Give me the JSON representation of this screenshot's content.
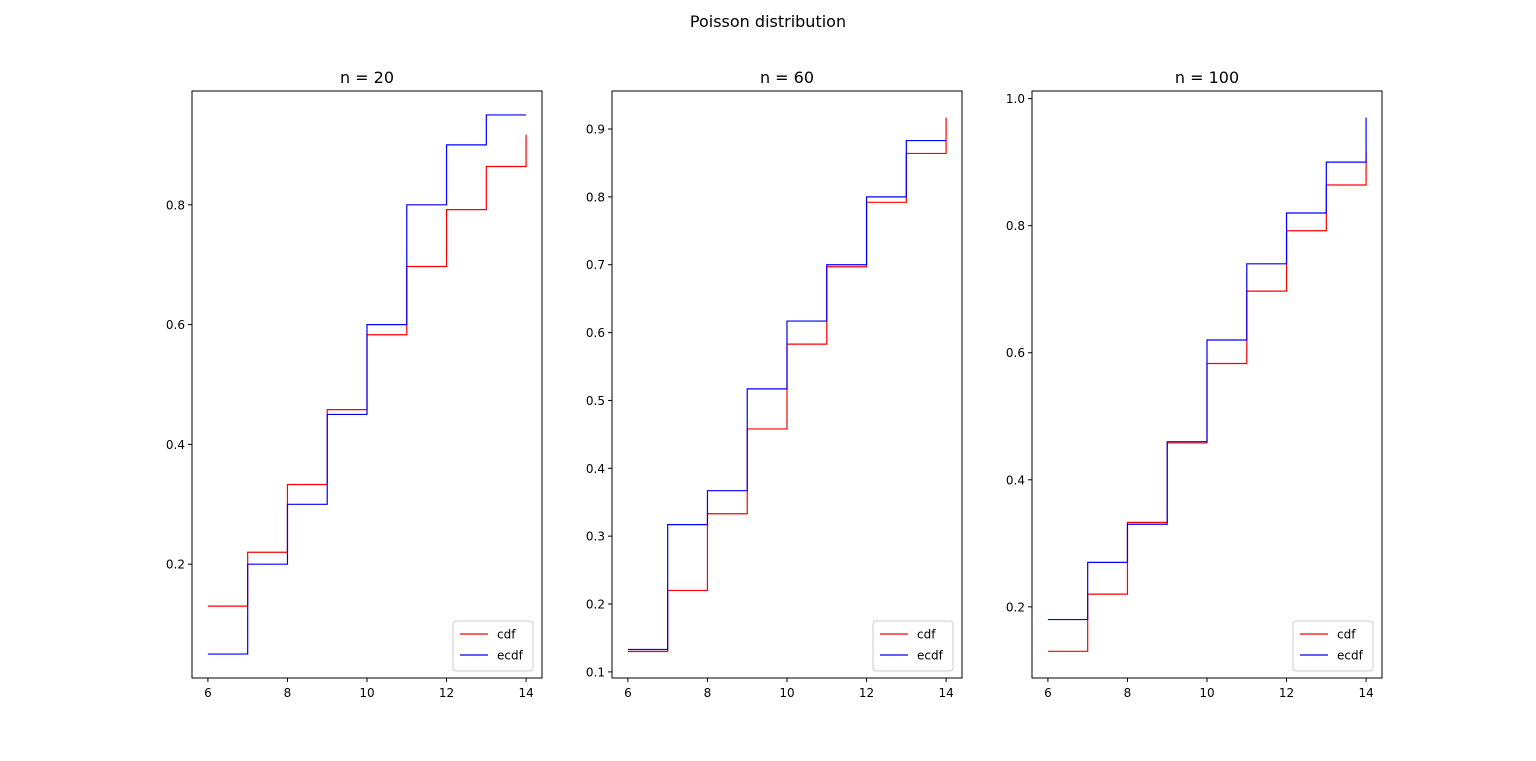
{
  "figure": {
    "title": "Poisson distribution",
    "colors": {
      "cdf": "#ff0000",
      "ecdf": "#0000ff",
      "axes": "#000000",
      "background": "#ffffff"
    }
  },
  "chart_data": [
    {
      "type": "line",
      "drawstyle": "steps-post",
      "title": "n = 20",
      "xlabel": "",
      "ylabel": "",
      "xlim": [
        5.6,
        14.4
      ],
      "ylim": [
        0.01,
        0.99
      ],
      "xticks": [
        6,
        8,
        10,
        12,
        14
      ],
      "yticks": [
        0.2,
        0.4,
        0.6,
        0.8
      ],
      "ytick_labels": [
        "0.2",
        "0.4",
        "0.6",
        "0.8"
      ],
      "grid": false,
      "legend": "lower-right",
      "x": [
        6,
        7,
        8,
        9,
        10,
        11,
        12,
        13,
        14
      ],
      "series": [
        {
          "name": "cdf",
          "color": "#ff0000",
          "values": [
            0.13,
            0.22,
            0.333,
            0.458,
            0.583,
            0.697,
            0.792,
            0.864,
            0.917
          ]
        },
        {
          "name": "ecdf",
          "color": "#0000ff",
          "values": [
            0.05,
            0.2,
            0.3,
            0.45,
            0.6,
            0.8,
            0.9,
            0.95,
            0.95
          ]
        }
      ]
    },
    {
      "type": "line",
      "drawstyle": "steps-post",
      "title": "n = 60",
      "xlabel": "",
      "ylabel": "",
      "xlim": [
        5.6,
        14.4
      ],
      "ylim": [
        0.091,
        0.956
      ],
      "xticks": [
        6,
        8,
        10,
        12,
        14
      ],
      "yticks": [
        0.1,
        0.2,
        0.3,
        0.4,
        0.5,
        0.6,
        0.7,
        0.8,
        0.9
      ],
      "ytick_labels": [
        "0.1",
        "0.2",
        "0.3",
        "0.4",
        "0.5",
        "0.6",
        "0.7",
        "0.8",
        "0.9"
      ],
      "grid": false,
      "legend": "lower-right",
      "x": [
        6,
        7,
        8,
        9,
        10,
        11,
        12,
        13,
        14
      ],
      "series": [
        {
          "name": "cdf",
          "color": "#ff0000",
          "values": [
            0.13,
            0.22,
            0.333,
            0.458,
            0.583,
            0.697,
            0.792,
            0.864,
            0.917
          ]
        },
        {
          "name": "ecdf",
          "color": "#0000ff",
          "values": [
            0.133,
            0.317,
            0.367,
            0.517,
            0.617,
            0.7,
            0.8,
            0.883,
            0.883
          ]
        }
      ]
    },
    {
      "type": "line",
      "drawstyle": "steps-post",
      "title": "n = 100",
      "xlabel": "",
      "ylabel": "",
      "xlim": [
        5.6,
        14.4
      ],
      "ylim": [
        0.088,
        1.012
      ],
      "xticks": [
        6,
        8,
        10,
        12,
        14
      ],
      "yticks": [
        0.2,
        0.4,
        0.6,
        0.8,
        1.0
      ],
      "ytick_labels": [
        "0.2",
        "0.4",
        "0.6",
        "0.8",
        "1.0"
      ],
      "grid": false,
      "legend": "lower-right",
      "x": [
        6,
        7,
        8,
        9,
        10,
        11,
        12,
        13,
        14
      ],
      "series": [
        {
          "name": "cdf",
          "color": "#ff0000",
          "values": [
            0.13,
            0.22,
            0.333,
            0.458,
            0.583,
            0.697,
            0.792,
            0.864,
            0.917
          ]
        },
        {
          "name": "ecdf",
          "color": "#0000ff",
          "values": [
            0.18,
            0.27,
            0.33,
            0.46,
            0.62,
            0.74,
            0.82,
            0.9,
            0.97
          ]
        }
      ]
    }
  ]
}
